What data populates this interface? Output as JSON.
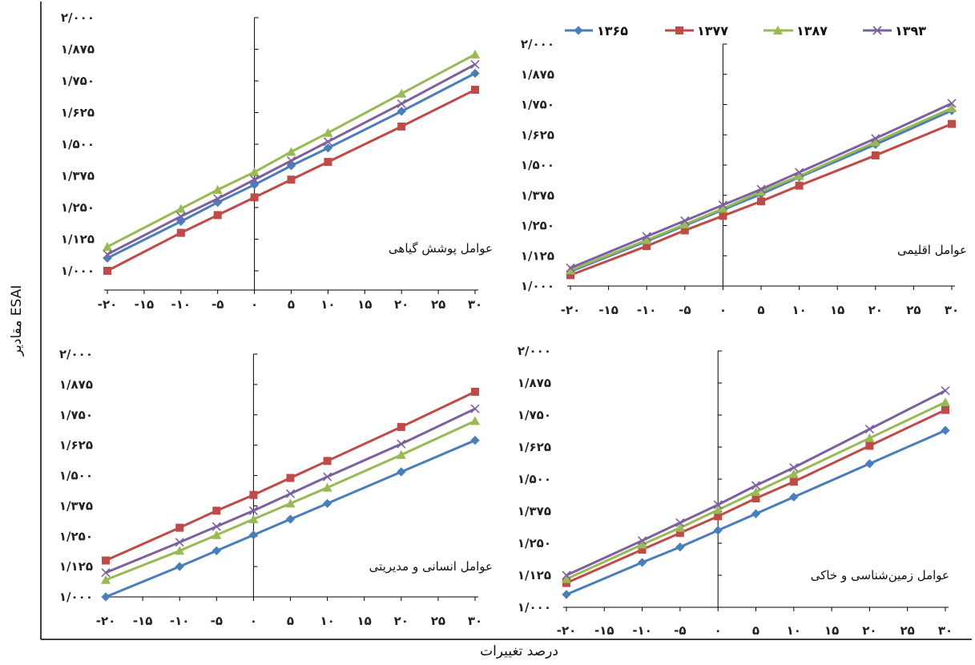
{
  "figure": {
    "ylabel": "مقادیر ESAI",
    "xlabel": "درصد تغییرات"
  },
  "legend": {
    "placement": "top-right",
    "series": [
      "۱۳۶۵",
      "۱۳۷۷",
      "۱۳۸۷",
      "۱۳۹۳"
    ],
    "colors": [
      "#4a7ebb",
      "#be4b48",
      "#98b954",
      "#7d60a0"
    ],
    "markers": [
      "diamond",
      "square",
      "triangle",
      "x"
    ]
  },
  "chart_data": [
    {
      "type": "line",
      "title": "عوامل پوشش گیاهی",
      "x": [
        -20,
        -10,
        -5,
        0,
        5,
        10,
        20,
        30
      ],
      "x_ticks": [
        -20,
        -15,
        -10,
        -5,
        0,
        5,
        10,
        15,
        20,
        25,
        30
      ],
      "x_tick_labels": [
        "-۲۰",
        "-۱۵",
        "-۱۰",
        "-۵",
        "۰",
        "۵",
        "۱۰",
        "۱۵",
        "۲۰",
        "۲۵",
        "۳۰"
      ],
      "y_ticks": [
        1.0,
        1.125,
        1.25,
        1.375,
        1.5,
        1.625,
        1.75,
        1.875,
        2.0
      ],
      "y_tick_labels": [
        "۱/۰۰۰",
        "۱/۱۲۵",
        "۱/۲۵۰",
        "۱/۳۷۵",
        "۱/۵۰۰",
        "۱/۶۲۵",
        "۱/۷۵۰",
        "۱/۸۷۵",
        "۲/۰۰۰"
      ],
      "xlim": [
        -20,
        30
      ],
      "ylim": [
        1.0,
        2.0
      ],
      "series": [
        {
          "name": "۱۳۶۵",
          "values": [
            1.05,
            1.195,
            1.27,
            1.34,
            1.415,
            1.485,
            1.63,
            1.78
          ]
        },
        {
          "name": "۱۳۷۷",
          "values": [
            1.0,
            1.15,
            1.22,
            1.29,
            1.36,
            1.43,
            1.57,
            1.715
          ]
        },
        {
          "name": "۱۳۸۷",
          "values": [
            1.095,
            1.245,
            1.32,
            1.39,
            1.47,
            1.545,
            1.7,
            1.855
          ]
        },
        {
          "name": "۱۳۹۳",
          "values": [
            1.065,
            1.215,
            1.285,
            1.36,
            1.435,
            1.51,
            1.66,
            1.815
          ]
        }
      ]
    },
    {
      "type": "line",
      "title": "عوامل اقلیمی",
      "x": [
        -20,
        -10,
        -5,
        0,
        5,
        10,
        20,
        30
      ],
      "x_ticks": [
        -20,
        -15,
        -10,
        -5,
        0,
        5,
        10,
        15,
        20,
        25,
        30
      ],
      "x_tick_labels": [
        "-۲۰",
        "-۱۵",
        "-۱۰",
        "-۵",
        "۰",
        "۵",
        "۱۰",
        "۱۵",
        "۲۰",
        "۲۵",
        "۳۰"
      ],
      "y_ticks": [
        1.0,
        1.125,
        1.25,
        1.375,
        1.5,
        1.625,
        1.75,
        1.875,
        2.0
      ],
      "y_tick_labels": [
        "۱/۰۰۰",
        "۱/۱۲۵",
        "۱/۲۵۰",
        "۱/۳۷۵",
        "۱/۵۰۰",
        "۱/۶۲۵",
        "۱/۷۵۰",
        "۱/۸۷۵",
        "۲/۰۰۰"
      ],
      "xlim": [
        -20,
        30
      ],
      "ylim": [
        1.0,
        2.0
      ],
      "series": [
        {
          "name": "۱۳۶۵",
          "values": [
            1.06,
            1.185,
            1.25,
            1.315,
            1.38,
            1.45,
            1.585,
            1.725
          ]
        },
        {
          "name": "۱۳۷۷",
          "values": [
            1.045,
            1.165,
            1.23,
            1.29,
            1.35,
            1.415,
            1.54,
            1.67
          ]
        },
        {
          "name": "۱۳۸۷",
          "values": [
            1.065,
            1.19,
            1.255,
            1.32,
            1.39,
            1.455,
            1.595,
            1.735
          ]
        },
        {
          "name": "۱۳۹۳",
          "values": [
            1.075,
            1.205,
            1.27,
            1.335,
            1.4,
            1.47,
            1.61,
            1.755
          ]
        }
      ]
    },
    {
      "type": "line",
      "title": "عوامل انسانی و مدیریتی",
      "x": [
        -20,
        -10,
        -5,
        0,
        5,
        10,
        20,
        30
      ],
      "x_ticks": [
        -20,
        -15,
        -10,
        -5,
        0,
        5,
        10,
        15,
        20,
        25,
        30
      ],
      "x_tick_labels": [
        "-۲۰",
        "-۱۵",
        "-۱۰",
        "-۵",
        "۰",
        "۵",
        "۱۰",
        "۱۵",
        "۲۰",
        "۲۵",
        "۳۰"
      ],
      "y_ticks": [
        1.0,
        1.125,
        1.25,
        1.375,
        1.5,
        1.625,
        1.75,
        1.875,
        2.0
      ],
      "y_tick_labels": [
        "۱/۰۰۰",
        "۱/۱۲۵",
        "۱/۲۵۰",
        "۱/۳۷۵",
        "۱/۵۰۰",
        "۱/۶۲۵",
        "۱/۷۵۰",
        "۱/۸۷۵",
        "۲/۰۰۰"
      ],
      "xlim": [
        -20,
        30
      ],
      "ylim": [
        1.0,
        2.0
      ],
      "series": [
        {
          "name": "۱۳۶۵",
          "values": [
            1.0,
            1.125,
            1.19,
            1.255,
            1.32,
            1.385,
            1.515,
            1.645
          ]
        },
        {
          "name": "۱۳۷۷",
          "values": [
            1.15,
            1.285,
            1.355,
            1.42,
            1.49,
            1.56,
            1.7,
            1.845
          ]
        },
        {
          "name": "۱۳۸۷",
          "values": [
            1.07,
            1.19,
            1.255,
            1.32,
            1.385,
            1.45,
            1.585,
            1.725
          ]
        },
        {
          "name": "۱۳۹۳",
          "values": [
            1.1,
            1.225,
            1.29,
            1.355,
            1.425,
            1.495,
            1.63,
            1.775
          ]
        }
      ]
    },
    {
      "type": "line",
      "title": "عوامل زمین‌شناسی و خاکی",
      "x": [
        -20,
        -10,
        -5,
        0,
        5,
        10,
        20,
        30
      ],
      "x_ticks": [
        -20,
        -15,
        -10,
        -5,
        0,
        5,
        10,
        15,
        20,
        25,
        30
      ],
      "x_tick_labels": [
        "-۲۰",
        "-۱۵",
        "-۱۰",
        "-۵",
        "۰",
        "۵",
        "۱۰",
        "۱۵",
        "۲۰",
        "۲۵",
        "۳۰"
      ],
      "y_ticks": [
        1.0,
        1.125,
        1.25,
        1.375,
        1.5,
        1.625,
        1.75,
        1.875,
        2.0
      ],
      "y_tick_labels": [
        "۱/۰۰۰",
        "۱/۱۲۵",
        "۱/۲۵۰",
        "۱/۳۷۵",
        "۱/۵۰۰",
        "۱/۶۲۵",
        "۱/۷۵۰",
        "۱/۸۷۵",
        "۲/۰۰۰"
      ],
      "xlim": [
        -20,
        30
      ],
      "ylim": [
        1.0,
        2.0
      ],
      "series": [
        {
          "name": "۱۳۶۵",
          "values": [
            1.05,
            1.175,
            1.235,
            1.3,
            1.365,
            1.43,
            1.56,
            1.69
          ]
        },
        {
          "name": "۱۳۷۷",
          "values": [
            1.095,
            1.225,
            1.29,
            1.355,
            1.425,
            1.49,
            1.63,
            1.77
          ]
        },
        {
          "name": "۱۳۸۷",
          "values": [
            1.11,
            1.245,
            1.31,
            1.38,
            1.45,
            1.52,
            1.66,
            1.8
          ]
        },
        {
          "name": "۱۳۹۳",
          "values": [
            1.125,
            1.26,
            1.33,
            1.4,
            1.475,
            1.545,
            1.695,
            1.845
          ]
        }
      ]
    }
  ]
}
